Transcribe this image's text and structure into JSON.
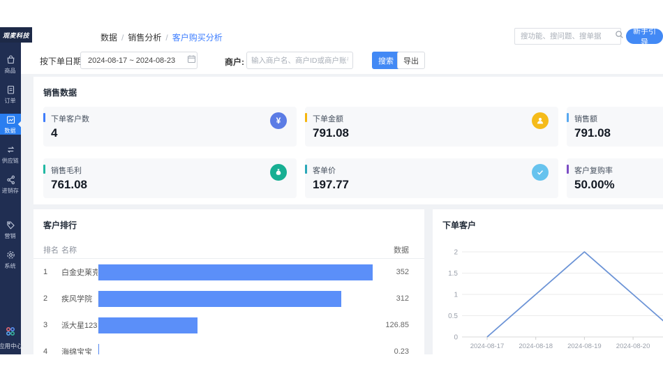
{
  "brand": {
    "logo": "观麦科技"
  },
  "sidebar": {
    "items": [
      {
        "label": "商品",
        "icon": "bag-icon"
      },
      {
        "label": "订单",
        "icon": "order-icon"
      },
      {
        "label": "数据",
        "icon": "chart-icon",
        "active": true
      },
      {
        "label": "供应链",
        "icon": "supply-chain-icon"
      },
      {
        "label": "进销存",
        "icon": "inventory-icon"
      },
      {
        "label": "营销",
        "icon": "tag-icon"
      },
      {
        "label": "系统",
        "icon": "gear-icon"
      }
    ],
    "bottom": {
      "label": "应用中心",
      "icon": "app-center-icon"
    },
    "active_color": "#2a7ef0",
    "bg_color": "#202e52"
  },
  "breadcrumb": {
    "items": [
      "数据",
      "销售分析"
    ],
    "current": "客户购买分析",
    "current_color": "#3d7eff"
  },
  "header": {
    "search_placeholder": "搜功能、搜问题、搜单据",
    "guide_button": "新手引导"
  },
  "filters": {
    "date_type": "按下单日期",
    "date_range": "2024-08-17 ~ 2024-08-23",
    "merchant_label": "商户:",
    "merchant_placeholder": "输入商户名、商户ID或商户账号搜索",
    "search_button": "搜索",
    "export_button": "导出"
  },
  "sales": {
    "title": "销售数据",
    "cards": [
      {
        "label": "下单客户数",
        "value": "4",
        "accent": "#3f7dfa",
        "icon": "yuan-icon",
        "icon_bg": "#5b7ce5"
      },
      {
        "label": "下单金额",
        "value": "791.08",
        "accent": "#f5b50d",
        "icon": "user-icon",
        "icon_bg": "#f5bb1a"
      },
      {
        "label": "销售额",
        "value": "791.08",
        "accent": "#57a8f0",
        "icon": null,
        "icon_bg": null
      },
      {
        "label": "销售毛利",
        "value": "761.08",
        "accent": "#21b8a3",
        "icon": "moneybag-icon",
        "icon_bg": "#17af93"
      },
      {
        "label": "客单价",
        "value": "197.77",
        "accent": "#2aa7b8",
        "icon": "check-icon",
        "icon_bg": "#67c3ee"
      },
      {
        "label": "客户复购率",
        "value": "50.00%",
        "accent": "#7c4dc4",
        "icon": null,
        "icon_bg": null
      }
    ]
  },
  "customers": {
    "title": "客户排行",
    "columns": [
      "排名",
      "名称",
      "数据"
    ],
    "bar_color": "#5b8ff9",
    "bar_max": 352,
    "rows": [
      {
        "rank": "1",
        "name": "白金史莱克",
        "value": 352,
        "display": "352"
      },
      {
        "rank": "2",
        "name": "疾风学院",
        "value": 312,
        "display": "312"
      },
      {
        "rank": "3",
        "name": "派大星123",
        "value": 126.85,
        "display": "126.85"
      },
      {
        "rank": "4",
        "name": "海绵宝宝",
        "value": 0.23,
        "display": "0.23"
      }
    ]
  },
  "chart_data": {
    "type": "line",
    "title": "下单客户",
    "categories": [
      "2024-08-17",
      "2024-08-18",
      "2024-08-19",
      "2024-08-20"
    ],
    "values": [
      0,
      1,
      2,
      1
    ],
    "yticks": [
      0,
      0.5,
      1,
      1.5,
      2
    ],
    "ylim": [
      0,
      2
    ],
    "xlabel": "",
    "ylabel": "",
    "grid": true,
    "legend": false,
    "line_color": "#6b93d6",
    "clipped_right": true
  }
}
